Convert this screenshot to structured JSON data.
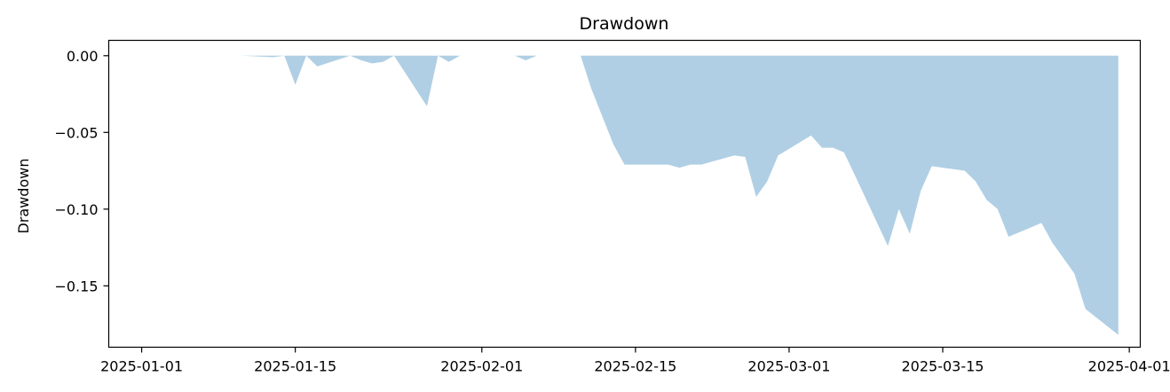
{
  "chart_data": {
    "type": "area",
    "title": "Drawdown",
    "xlabel": "",
    "ylabel": "Drawdown",
    "x_type": "date",
    "xlim": [
      "2024-12-29",
      "2025-04-02"
    ],
    "ylim": [
      -0.19,
      0.01
    ],
    "x_ticks": [
      "2025-01-01",
      "2025-01-15",
      "2025-02-01",
      "2025-02-15",
      "2025-03-01",
      "2025-03-15",
      "2025-04-01"
    ],
    "x_tick_labels": [
      "2025-01-01",
      "2025-01-15",
      "2025-02-01",
      "2025-02-15",
      "2025-03-01",
      "2025-03-15",
      "2025-04-01"
    ],
    "y_ticks": [
      0.0,
      -0.05,
      -0.1,
      -0.15
    ],
    "y_tick_labels": [
      "0.00",
      "−0.05",
      "−0.10",
      "−0.15"
    ],
    "grid": false,
    "fill_color": "#b0cfe4",
    "series": [
      {
        "x": [
          "2025-01-10",
          "2025-01-13",
          "2025-01-14",
          "2025-01-15",
          "2025-01-16",
          "2025-01-17",
          "2025-01-20",
          "2025-01-21",
          "2025-01-22",
          "2025-01-23",
          "2025-01-24",
          "2025-01-27",
          "2025-01-28",
          "2025-01-29",
          "2025-01-30",
          "2025-01-31",
          "2025-02-03",
          "2025-02-04",
          "2025-02-05",
          "2025-02-06",
          "2025-02-07",
          "2025-02-10",
          "2025-02-11",
          "2025-02-12",
          "2025-02-13",
          "2025-02-14",
          "2025-02-17",
          "2025-02-18",
          "2025-02-19",
          "2025-02-20",
          "2025-02-21",
          "2025-02-24",
          "2025-02-25",
          "2025-02-26",
          "2025-02-27",
          "2025-02-28",
          "2025-03-03",
          "2025-03-04",
          "2025-03-05",
          "2025-03-06",
          "2025-03-07",
          "2025-03-10",
          "2025-03-11",
          "2025-03-12",
          "2025-03-13",
          "2025-03-14",
          "2025-03-17",
          "2025-03-18",
          "2025-03-19",
          "2025-03-20",
          "2025-03-21",
          "2025-03-24",
          "2025-03-25",
          "2025-03-26",
          "2025-03-27",
          "2025-03-28",
          "2025-03-31"
        ],
        "values": [
          0.0,
          -0.001,
          0.0,
          -0.019,
          0.0,
          -0.007,
          0.0,
          -0.003,
          -0.005,
          -0.004,
          0.0,
          -0.033,
          0.0,
          -0.004,
          0.0,
          0.0,
          0.0,
          0.0,
          -0.003,
          0.0,
          0.0,
          0.0,
          -0.022,
          -0.04,
          -0.058,
          -0.071,
          -0.071,
          -0.071,
          -0.073,
          -0.071,
          -0.071,
          -0.065,
          -0.066,
          -0.092,
          -0.082,
          -0.065,
          -0.052,
          -0.06,
          -0.06,
          -0.063,
          -0.078,
          -0.124,
          -0.1,
          -0.116,
          -0.088,
          -0.072,
          -0.075,
          -0.082,
          -0.094,
          -0.1,
          -0.118,
          -0.109,
          -0.122,
          -0.132,
          -0.142,
          -0.165,
          -0.182
        ]
      }
    ]
  }
}
